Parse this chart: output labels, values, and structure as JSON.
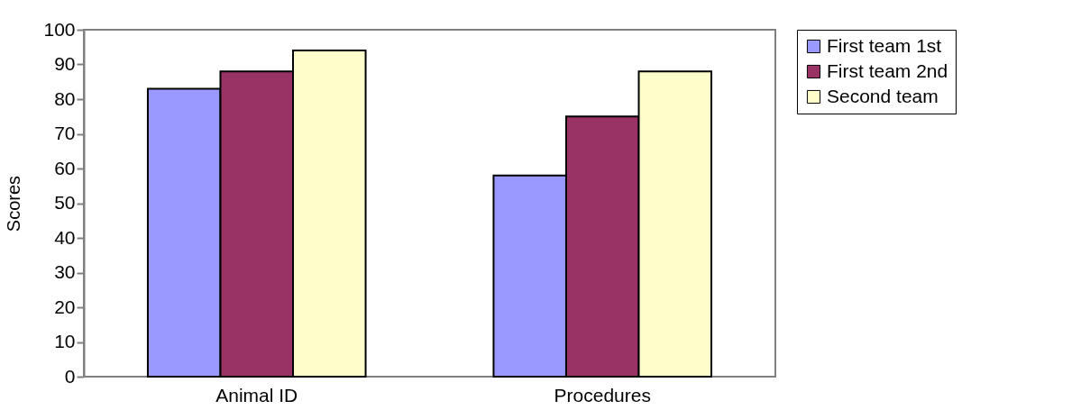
{
  "chart_data": {
    "type": "bar",
    "ylabel": "Scores",
    "categories": [
      "Animal ID",
      "Procedures"
    ],
    "series": [
      {
        "name": "First team 1st",
        "color": "#9999ff",
        "values": [
          83,
          58
        ]
      },
      {
        "name": "First team 2nd",
        "color": "#993366",
        "values": [
          88,
          75
        ]
      },
      {
        "name": "Second team",
        "color": "#ffffcc",
        "values": [
          94,
          88
        ]
      }
    ],
    "ylim": [
      0,
      100
    ],
    "yticks": [
      0,
      10,
      20,
      30,
      40,
      50,
      60,
      70,
      80,
      90,
      100
    ],
    "grid": false,
    "legend": "right"
  }
}
